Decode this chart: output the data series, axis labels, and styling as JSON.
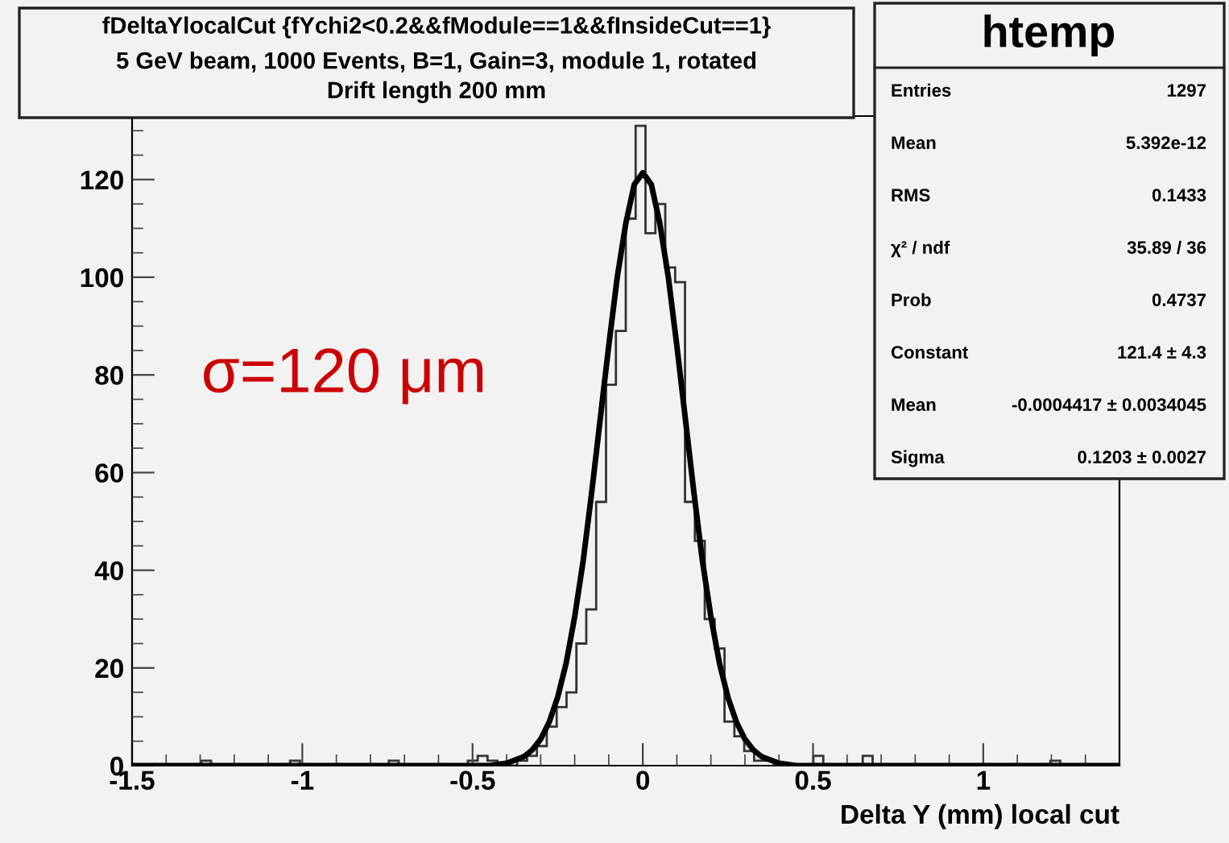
{
  "chart_data": {
    "type": "histogram",
    "title": "fDeltaYlocalCut {fYchi2<0.2&&fModule==1&&fInsideCut==1}",
    "subtitle": "5 GeV beam, 1000 Events, B=1, Gain=3, module 1, rotated\nDrift length 200 mm",
    "xlabel": "Delta Y (mm) local cut",
    "xlim": [
      -1.5,
      1.4
    ],
    "ylim": [
      0,
      133
    ],
    "xticks": [
      -1.5,
      -1,
      -0.5,
      0,
      0.5,
      1
    ],
    "yticks": [
      0,
      20,
      40,
      60,
      80,
      100,
      120
    ],
    "grid": false,
    "legend": false,
    "series": [
      {
        "color": "#333333",
        "bins": [
          -1.5,
          -1.471,
          -1.442,
          -1.413,
          -1.384,
          -1.355,
          -1.326,
          -1.297,
          -1.268,
          -1.239,
          -1.21,
          -1.181,
          -1.152,
          -1.123,
          -1.094,
          -1.065,
          -1.036,
          -1.007,
          -0.978,
          -0.949,
          -0.92,
          -0.891,
          -0.862,
          -0.833,
          -0.804,
          -0.775,
          -0.746,
          -0.717,
          -0.688,
          -0.659,
          -0.63,
          -0.601,
          -0.572,
          -0.543,
          -0.514,
          -0.485,
          -0.456,
          -0.427,
          -0.398,
          -0.369,
          -0.34,
          -0.311,
          -0.282,
          -0.253,
          -0.224,
          -0.195,
          -0.166,
          -0.137,
          -0.108,
          -0.079,
          -0.05,
          -0.021,
          0.008,
          0.037,
          0.066,
          0.095,
          0.124,
          0.153,
          0.182,
          0.211,
          0.24,
          0.269,
          0.298,
          0.327,
          0.356,
          0.385,
          0.414,
          0.443,
          0.472,
          0.501,
          0.53,
          0.559,
          0.588,
          0.617,
          0.646,
          0.675,
          0.704,
          0.733,
          0.762,
          0.791,
          0.82,
          0.849,
          0.878,
          0.907,
          0.936,
          0.965,
          0.994,
          1.023,
          1.052,
          1.081,
          1.11,
          1.139,
          1.168,
          1.197,
          1.226,
          1.255,
          1.284,
          1.313,
          1.342,
          1.371,
          1.4
        ],
        "values": [
          0,
          0,
          0,
          0,
          0,
          0,
          0,
          1,
          0,
          0,
          0,
          0,
          0,
          0,
          0,
          0,
          1,
          0,
          0,
          0,
          0,
          0,
          0,
          0,
          0,
          0,
          1,
          0,
          0,
          0,
          0,
          0,
          0,
          0,
          1,
          2,
          1,
          0,
          0,
          1,
          2,
          4,
          8,
          12,
          15,
          25,
          32,
          54,
          78,
          89,
          112,
          131,
          109,
          115,
          102,
          99,
          54,
          46,
          30,
          24,
          9,
          6,
          3,
          1,
          1,
          0,
          0,
          0,
          0,
          2,
          0,
          0,
          0,
          0,
          2,
          0,
          0,
          0,
          0,
          0,
          0,
          0,
          0,
          0,
          0,
          0,
          0,
          0,
          0,
          0,
          0,
          0,
          0,
          1,
          0,
          0,
          0,
          0,
          0,
          0
        ]
      },
      {
        "type": "line",
        "color": "#000000",
        "x": [
          -1.5,
          -0.6,
          -0.5,
          -0.45,
          -0.4,
          -0.35,
          -0.325,
          -0.3,
          -0.275,
          -0.25,
          -0.225,
          -0.2,
          -0.175,
          -0.15,
          -0.125,
          -0.1,
          -0.075,
          -0.05,
          -0.025,
          0,
          0.025,
          0.05,
          0.075,
          0.1,
          0.125,
          0.15,
          0.175,
          0.2,
          0.225,
          0.25,
          0.275,
          0.3,
          0.325,
          0.35,
          0.4,
          0.45,
          0.5,
          0.6,
          1.4
        ],
        "values": [
          0,
          0,
          0,
          0,
          0.5,
          1.8,
          3.2,
          5.4,
          8.9,
          14,
          21,
          30.5,
          42,
          56,
          71,
          86,
          100,
          111,
          119,
          121.4,
          119,
          111,
          100,
          86,
          71,
          56,
          42,
          30.5,
          21,
          14,
          8.9,
          5.4,
          3.2,
          1.8,
          0.5,
          0,
          0,
          0,
          0
        ]
      }
    ],
    "annotations": [
      "σ=120 μm",
      "htemp",
      "Entries",
      "1297",
      "Mean",
      "5.392e-12",
      "RMS",
      "0.1433",
      "χ² / ndf",
      "35.89 / 36",
      "Prob",
      "0.4737",
      "Constant",
      "121.4 ± 4.3",
      "Mean",
      "-0.0004417 ± 0.0034045",
      "Sigma",
      "0.1203 ± 0.0027"
    ]
  }
}
